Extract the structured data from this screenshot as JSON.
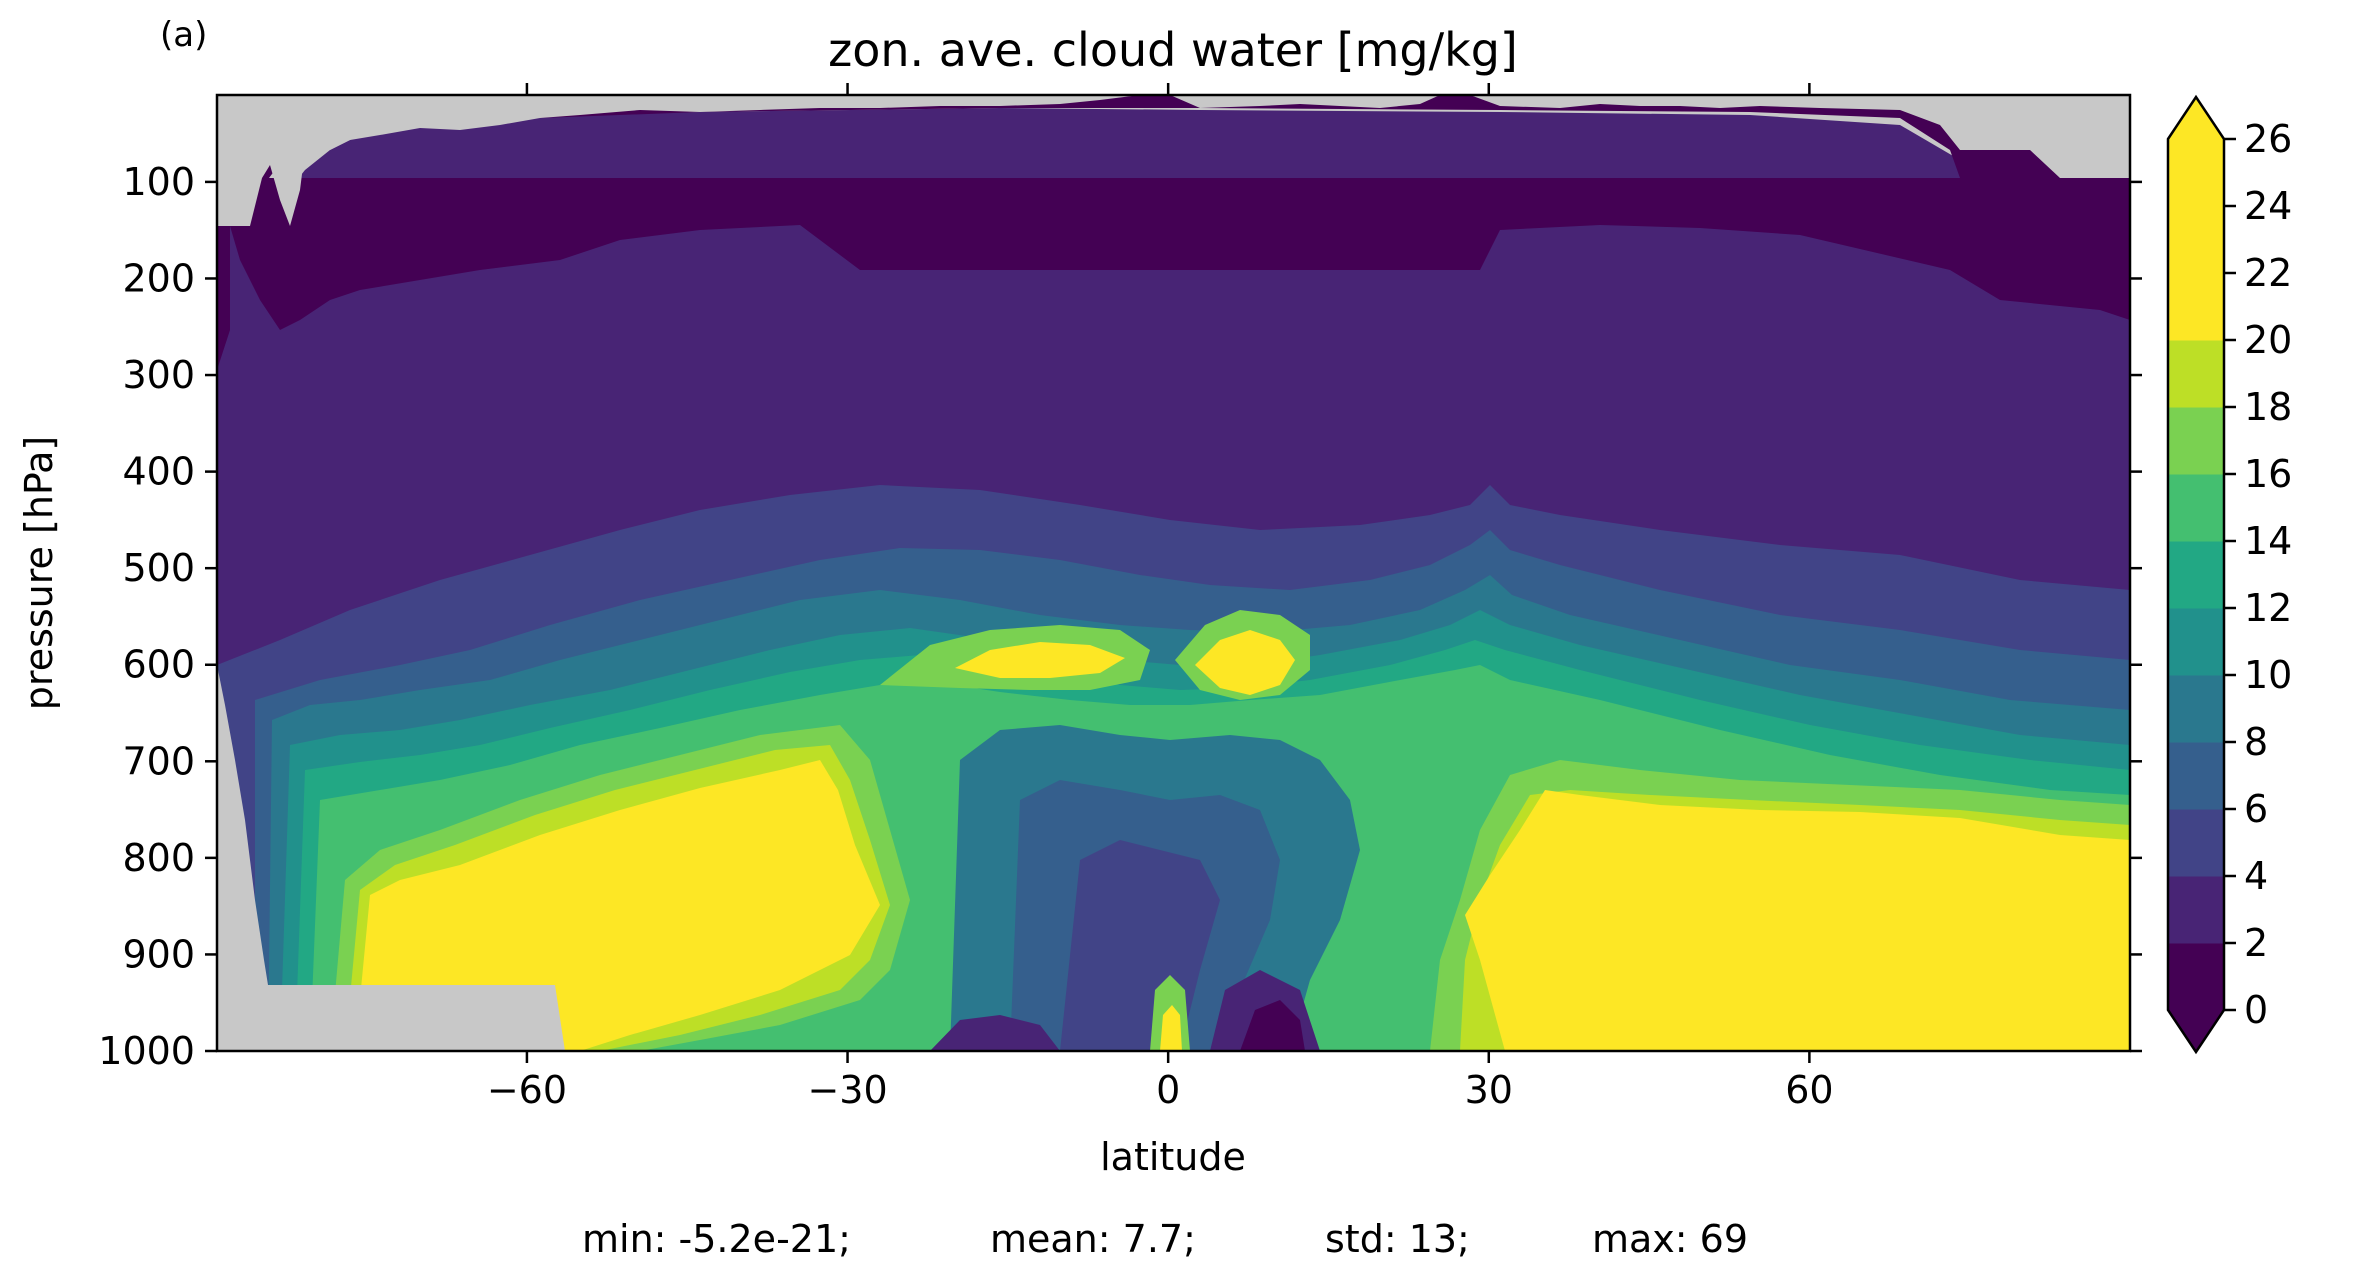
{
  "panel_label": "(a)",
  "chart_data": {
    "type": "heatmap",
    "subtype": "filled-contour",
    "title": "zon. ave. cloud water [mg/kg]",
    "xlabel": "latitude",
    "ylabel": "pressure [hPa]",
    "xlim": [
      -89,
      90
    ],
    "ylim": [
      1000,
      10
    ],
    "x_ticks": [
      -60,
      -30,
      0,
      30,
      60
    ],
    "x_tick_labels": [
      "−60",
      "−30",
      "0",
      "30",
      "60"
    ],
    "y_ticks": [
      100,
      200,
      300,
      400,
      500,
      600,
      700,
      800,
      900,
      1000
    ],
    "y_tick_labels": [
      "100",
      "200",
      "300",
      "400",
      "500",
      "600",
      "700",
      "800",
      "900",
      "1000"
    ],
    "colorbar": {
      "levels": [
        0,
        2,
        4,
        6,
        8,
        10,
        12,
        14,
        16,
        18,
        20,
        22,
        24,
        26
      ],
      "tick_labels": [
        "0",
        "2",
        "4",
        "6",
        "8",
        "10",
        "12",
        "14",
        "16",
        "18",
        "20",
        "22",
        "24",
        "26"
      ],
      "extend": "both",
      "colors": [
        "#440154",
        "#482475",
        "#414487",
        "#355f8d",
        "#2a788e",
        "#21918c",
        "#22a884",
        "#44bf70",
        "#7ad151",
        "#bddf26",
        "#fde725"
      ],
      "under_color": "#440154",
      "over_color": "#fde725"
    },
    "missing_color": "#c8c8c8",
    "features": [
      {
        "desc": "high cloud water lobe, southern mid-latitudes",
        "lat_range": [
          -75,
          -32
        ],
        "pressure_range": [
          1000,
          700
        ],
        "value_min": 26
      },
      {
        "desc": "high cloud water lobe, northern mid-latitudes",
        "lat_range": [
          29,
          90
        ],
        "pressure_range": [
          1000,
          740
        ],
        "value_min": 26
      },
      {
        "desc": "mid-level maximum south of equator",
        "lat": -8,
        "pressure": 600,
        "value_min": 26
      },
      {
        "desc": "mid-level maximum north of equator",
        "lat": 7,
        "pressure": 600,
        "value_min": 26
      }
    ],
    "stats_text": [
      "min: -5.2e-21;",
      "mean: 7.7;",
      "std: 13;",
      "max: 69"
    ]
  }
}
